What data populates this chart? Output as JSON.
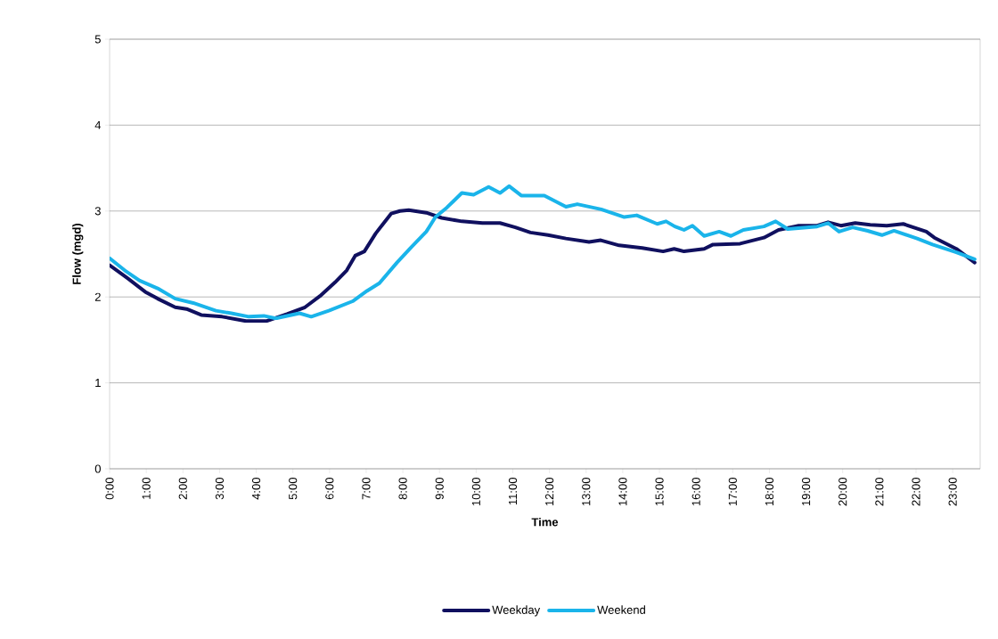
{
  "chart_data": {
    "type": "line",
    "xlabel": "Time",
    "ylabel": "Flow (mgd)",
    "xlim": [
      0,
      23.75
    ],
    "ylim": [
      0,
      5
    ],
    "yticks": [
      0,
      1,
      2,
      3,
      4,
      5
    ],
    "xticks": [
      {
        "value": 0,
        "label": "0:00"
      },
      {
        "value": 1,
        "label": "1:00"
      },
      {
        "value": 2,
        "label": "2:00"
      },
      {
        "value": 3,
        "label": "3:00"
      },
      {
        "value": 4,
        "label": "4:00"
      },
      {
        "value": 5,
        "label": "5:00"
      },
      {
        "value": 6,
        "label": "6:00"
      },
      {
        "value": 7,
        "label": "7:00"
      },
      {
        "value": 8,
        "label": "8:00"
      },
      {
        "value": 9,
        "label": "9:00"
      },
      {
        "value": 10,
        "label": "10:00"
      },
      {
        "value": 11,
        "label": "11:00"
      },
      {
        "value": 12,
        "label": "12:00"
      },
      {
        "value": 13,
        "label": "13:00"
      },
      {
        "value": 14,
        "label": "14:00"
      },
      {
        "value": 15,
        "label": "15:00"
      },
      {
        "value": 16,
        "label": "16:00"
      },
      {
        "value": 17,
        "label": "17:00"
      },
      {
        "value": 18,
        "label": "18:00"
      },
      {
        "value": 19,
        "label": "19:00"
      },
      {
        "value": 20,
        "label": "20:00"
      },
      {
        "value": 21,
        "label": "21:00"
      },
      {
        "value": 22,
        "label": "22:00"
      },
      {
        "value": 23,
        "label": "23:00"
      }
    ],
    "grid": "y",
    "legend": "bottom",
    "marker": "none",
    "line_style": "solid",
    "series": [
      {
        "name": "Weekday",
        "color": "#10105f",
        "x": [
          0,
          0.48,
          0.97,
          1.31,
          1.79,
          2.1,
          2.5,
          3.07,
          3.72,
          4.29,
          4.84,
          5.33,
          5.74,
          6.15,
          6.47,
          6.7,
          6.95,
          7.26,
          7.68,
          7.92,
          8.16,
          8.64,
          9.06,
          9.61,
          10.17,
          10.65,
          11.07,
          11.48,
          11.96,
          12.45,
          13.08,
          13.4,
          13.9,
          14.53,
          15.1,
          15.4,
          15.67,
          16.22,
          16.46,
          17.2,
          17.85,
          18.25,
          18.8,
          19.3,
          19.6,
          19.95,
          20.34,
          20.75,
          21.2,
          21.65,
          22.28,
          22.5,
          23.1,
          23.6
        ],
        "values": [
          2.37,
          2.22,
          2.06,
          1.98,
          1.88,
          1.86,
          1.79,
          1.77,
          1.72,
          1.72,
          1.8,
          1.88,
          2.01,
          2.17,
          2.31,
          2.48,
          2.53,
          2.74,
          2.97,
          3.0,
          3.01,
          2.98,
          2.92,
          2.88,
          2.86,
          2.86,
          2.81,
          2.75,
          2.72,
          2.68,
          2.64,
          2.66,
          2.6,
          2.57,
          2.53,
          2.56,
          2.53,
          2.56,
          2.61,
          2.62,
          2.69,
          2.78,
          2.83,
          2.83,
          2.87,
          2.83,
          2.86,
          2.84,
          2.83,
          2.85,
          2.76,
          2.69,
          2.56,
          2.4
        ]
      },
      {
        "name": "Weekend",
        "color": "#1ab4ea",
        "x": [
          0,
          0.41,
          0.82,
          1.31,
          1.79,
          2.28,
          2.9,
          3.32,
          3.8,
          4.21,
          4.53,
          5.18,
          5.5,
          5.98,
          6.63,
          7.02,
          7.36,
          7.84,
          8.23,
          8.64,
          8.89,
          9.2,
          9.61,
          9.93,
          10.34,
          10.65,
          10.9,
          11.23,
          11.86,
          12.45,
          12.76,
          13.41,
          14.04,
          14.38,
          14.94,
          15.18,
          15.42,
          15.67,
          15.9,
          16.22,
          16.63,
          16.95,
          17.29,
          17.85,
          18.17,
          18.5,
          19.3,
          19.6,
          19.9,
          20.27,
          20.68,
          21.07,
          21.4,
          22.03,
          22.45,
          23.1,
          23.6
        ],
        "values": [
          2.45,
          2.31,
          2.19,
          2.1,
          1.98,
          1.93,
          1.84,
          1.81,
          1.77,
          1.78,
          1.75,
          1.81,
          1.77,
          1.84,
          1.95,
          2.07,
          2.16,
          2.4,
          2.58,
          2.76,
          2.93,
          3.04,
          3.21,
          3.19,
          3.28,
          3.21,
          3.29,
          3.18,
          3.18,
          3.05,
          3.08,
          3.02,
          2.93,
          2.95,
          2.85,
          2.88,
          2.82,
          2.78,
          2.83,
          2.71,
          2.76,
          2.71,
          2.78,
          2.82,
          2.88,
          2.79,
          2.82,
          2.86,
          2.76,
          2.81,
          2.77,
          2.72,
          2.77,
          2.68,
          2.61,
          2.52,
          2.44
        ]
      }
    ]
  }
}
